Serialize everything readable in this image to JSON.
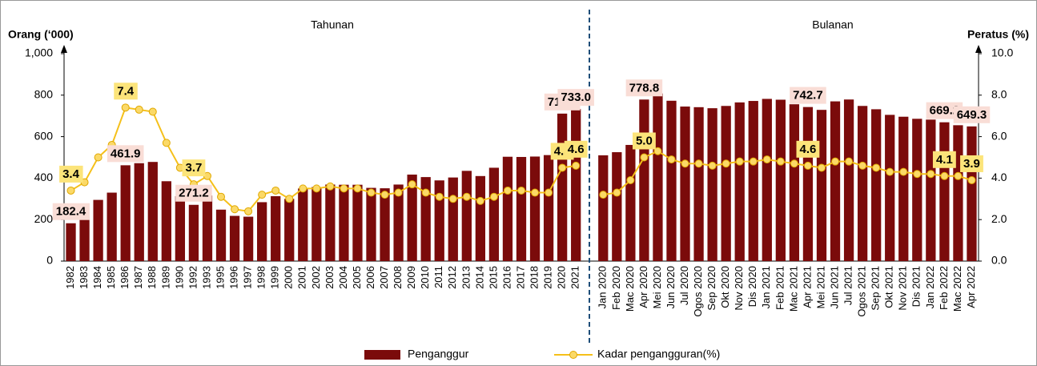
{
  "chart_data": {
    "type": "bar_line",
    "annotations": [
      "Tahunan",
      "Bulanan"
    ],
    "ylabel": "Orang (‘000)",
    "y2label": "Peratus (%)",
    "categories": [
      "1982",
      "1983",
      "1984",
      "1985",
      "1986",
      "1987",
      "1988",
      "1989",
      "1990",
      "1992",
      "1993",
      "1995",
      "1996",
      "1997",
      "1998",
      "1999",
      "2000",
      "2001",
      "2002",
      "2003",
      "2004",
      "2005",
      "2006",
      "2007",
      "2008",
      "2009",
      "2010",
      "2011",
      "2012",
      "2013",
      "2014",
      "2015",
      "2016",
      "2017",
      "2018",
      "2019",
      "2020",
      "2021",
      null,
      "Jan 2020",
      "Feb 2020",
      "Mac 2020",
      "Apr 2020",
      "Mei 2020",
      "Jun 2020",
      "Jul 2020",
      "Ogos 2020",
      "Sep 2020",
      "Okt 2020",
      "Nov 2020",
      "Dis 2020",
      "Jan 2021",
      "Feb 2021",
      "Mac 2021",
      "Apr 2021",
      "Mei 2021",
      "Jun 2021",
      "Jul 2021",
      "Ogos 2021",
      "Sep 2021",
      "Okt 2021",
      "Nov 2021",
      "Dis 2021",
      "Jan 2022",
      "Feb 2022",
      "Mac 2022",
      "Apr 2022"
    ],
    "series": [
      {
        "name": "Penganggur",
        "type": "bar",
        "color": "#7b0b0b",
        "values": [
          182.4,
          215,
          295,
          330,
          461.9,
          472,
          478,
          385,
          313,
          271.2,
          316,
          248,
          218,
          214,
          284,
          313,
          300,
          350,
          357,
          369,
          368,
          368,
          353,
          351,
          369,
          417,
          405,
          389,
          403,
          435,
          410,
          450,
          503,
          502,
          504,
          511,
          711.0,
          733.0,
          null,
          510,
          525,
          560,
          778.8,
          808,
          773,
          745,
          742,
          737,
          748,
          765,
          772,
          782,
          778,
          756,
          742.7,
          729,
          770,
          779,
          748,
          732,
          705,
          696,
          686,
          682,
          669.2,
          655,
          649.3
        ],
        "value_labels": [
          "182.4",
          null,
          null,
          null,
          "461.9",
          null,
          null,
          null,
          null,
          "271.2",
          null,
          null,
          null,
          null,
          null,
          null,
          null,
          null,
          null,
          null,
          null,
          null,
          null,
          null,
          null,
          null,
          null,
          null,
          null,
          null,
          null,
          null,
          null,
          null,
          null,
          null,
          "711.0",
          "733.0",
          null,
          null,
          null,
          null,
          "778.8",
          null,
          null,
          null,
          null,
          null,
          null,
          null,
          null,
          null,
          null,
          null,
          "742.7",
          null,
          null,
          null,
          null,
          null,
          null,
          null,
          null,
          null,
          "669.2",
          null,
          "649.3"
        ]
      },
      {
        "name": "Kadar pengangguran(%)",
        "type": "line",
        "axis": "y2",
        "color": "#f5c01a",
        "values": [
          3.4,
          3.8,
          5.0,
          5.6,
          7.4,
          7.3,
          7.2,
          5.7,
          4.5,
          3.7,
          4.1,
          3.1,
          2.5,
          2.4,
          3.2,
          3.4,
          3.0,
          3.5,
          3.5,
          3.6,
          3.5,
          3.5,
          3.3,
          3.2,
          3.3,
          3.7,
          3.3,
          3.1,
          3.0,
          3.1,
          2.9,
          3.1,
          3.4,
          3.4,
          3.3,
          3.3,
          4.5,
          4.6,
          null,
          3.2,
          3.3,
          3.9,
          5.0,
          5.3,
          4.9,
          4.7,
          4.7,
          4.6,
          4.7,
          4.8,
          4.8,
          4.9,
          4.8,
          4.7,
          4.6,
          4.5,
          4.8,
          4.8,
          4.6,
          4.5,
          4.3,
          4.3,
          4.2,
          4.2,
          4.1,
          4.1,
          3.9
        ],
        "value_labels": [
          "3.4",
          null,
          null,
          null,
          "7.4",
          null,
          null,
          null,
          null,
          "3.7",
          null,
          null,
          null,
          null,
          null,
          null,
          null,
          null,
          null,
          null,
          null,
          null,
          null,
          null,
          null,
          null,
          null,
          null,
          null,
          null,
          null,
          null,
          null,
          null,
          null,
          null,
          "4.5",
          "4.6",
          null,
          null,
          null,
          null,
          "5.0",
          null,
          null,
          null,
          null,
          null,
          null,
          null,
          null,
          null,
          null,
          null,
          "4.6",
          null,
          null,
          null,
          null,
          null,
          null,
          null,
          null,
          null,
          "4.1",
          null,
          "3.9"
        ]
      }
    ],
    "ylim": [
      0,
      1000
    ],
    "yticks": [
      0,
      200,
      400,
      600,
      800,
      {
        "value": 1000,
        "label": "1,000"
      }
    ],
    "y2lim": [
      0,
      10
    ],
    "y2ticks": [
      {
        "value": 0,
        "label": "0.0"
      },
      {
        "value": 2,
        "label": "2.0"
      },
      {
        "value": 4,
        "label": "4.0"
      },
      {
        "value": 6,
        "label": "6.0"
      },
      {
        "value": 8,
        "label": "8.0"
      },
      {
        "value": 10,
        "label": "10.0"
      }
    ],
    "legend": "bottom"
  }
}
